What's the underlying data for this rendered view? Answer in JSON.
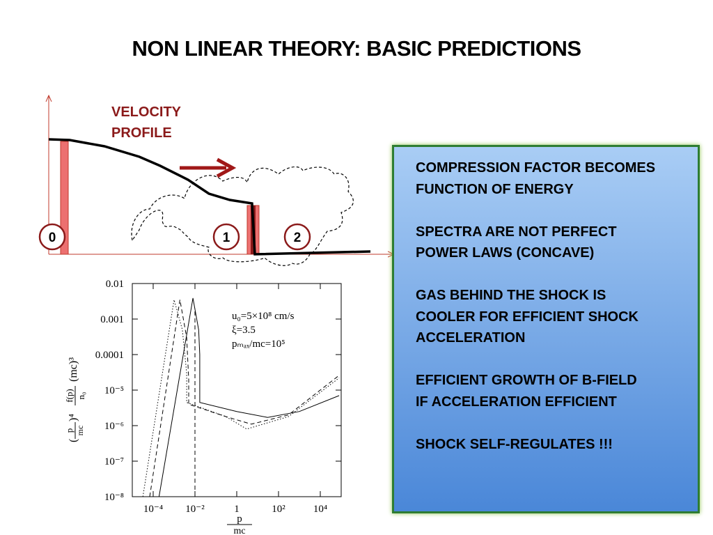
{
  "title": "NON LINEAR THEORY: BASIC PREDICTIONS",
  "diagram": {
    "label": [
      "VELOCITY",
      "PROFILE"
    ],
    "regions": [
      "0",
      "1",
      "2"
    ]
  },
  "box": {
    "paragraphs": [
      [
        "COMPRESSION FACTOR BECOMES",
        "FUNCTION OF ENERGY"
      ],
      [
        "SPECTRA ARE NOT PERFECT",
        "POWER LAWS (CONCAVE)"
      ],
      [
        "GAS BEHIND THE SHOCK IS",
        "COOLER FOR EFFICIENT SHOCK",
        "ACCELERATION"
      ],
      [
        "EFFICIENT GROWTH OF B-FIELD",
        "IF ACCELERATION EFFICIENT"
      ],
      [
        "SHOCK SELF-REGULATES !!!"
      ]
    ]
  },
  "plot": {
    "type": "line",
    "log_x": true,
    "log_y": true,
    "xlim": [
      1e-05,
      100000
    ],
    "ylim": [
      1e-08,
      0.01
    ],
    "xticks": [
      {
        "value": 0.0001,
        "label": "10⁻⁴"
      },
      {
        "value": 0.01,
        "label": "10⁻²"
      },
      1,
      {
        "value": 100,
        "label": "10²"
      },
      {
        "value": 10000,
        "label": "10⁴"
      }
    ],
    "yticks": [
      {
        "value": 0.01,
        "label": "0.01"
      },
      {
        "value": 0.001,
        "label": "0.001"
      },
      {
        "value": 0.0001,
        "label": "0.0001"
      },
      {
        "value": 1e-05,
        "label": "10⁻⁵"
      },
      {
        "value": 1e-06,
        "label": "10⁻⁶"
      },
      {
        "value": 1e-07,
        "label": "10⁻⁷"
      },
      {
        "value": 1e-08,
        "label": "10⁻⁸"
      }
    ],
    "xlabel": {
      "numerator": "p",
      "denominator": "mc"
    },
    "ylabel": [
      "(",
      "p",
      "mc",
      ")⁴",
      "f(p)",
      "n₀",
      "(mc)³"
    ],
    "annotations": [
      "u₀=5×10⁸ cm/s",
      "ξ=3.5",
      "pₘₐₓ/mc=10⁵"
    ],
    "series": [
      {
        "style": "solid",
        "color": "#000000",
        "x": [
          0.00019,
          0.008,
          0.015,
          0.017,
          0.017,
          1,
          30,
          1000,
          80000
        ],
        "values": [
          1e-08,
          0.0039,
          0.0005,
          0.0001,
          4.5e-06,
          2.5e-06,
          1.7e-06,
          2.5e-06,
          7e-06
        ]
      },
      {
        "style": "dashed",
        "color": "#000000",
        "x": [
          6.8e-05,
          0.0019,
          0.004,
          0.005,
          0.005,
          0.3,
          5,
          300,
          80000
        ],
        "values": [
          1e-08,
          0.0035,
          0.0003,
          2e-05,
          4e-06,
          1.8e-06,
          1.1e-06,
          2e-06,
          2.6e-05
        ]
      },
      {
        "style": "dashed",
        "color": "#000000",
        "x": [
          0.01,
          0.01
        ],
        "values": [
          1e-08,
          0.002
        ]
      },
      {
        "style": "dotted",
        "color": "#000000",
        "x": [
          3.2e-05,
          0.001,
          0.0025,
          0.004,
          0.004,
          0.3,
          3,
          300,
          80000
        ],
        "values": [
          1e-08,
          0.0035,
          0.0005,
          3e-05,
          4.5e-06,
          1.8e-06,
          8e-07,
          1.8e-06,
          2.2e-05
        ]
      }
    ]
  }
}
